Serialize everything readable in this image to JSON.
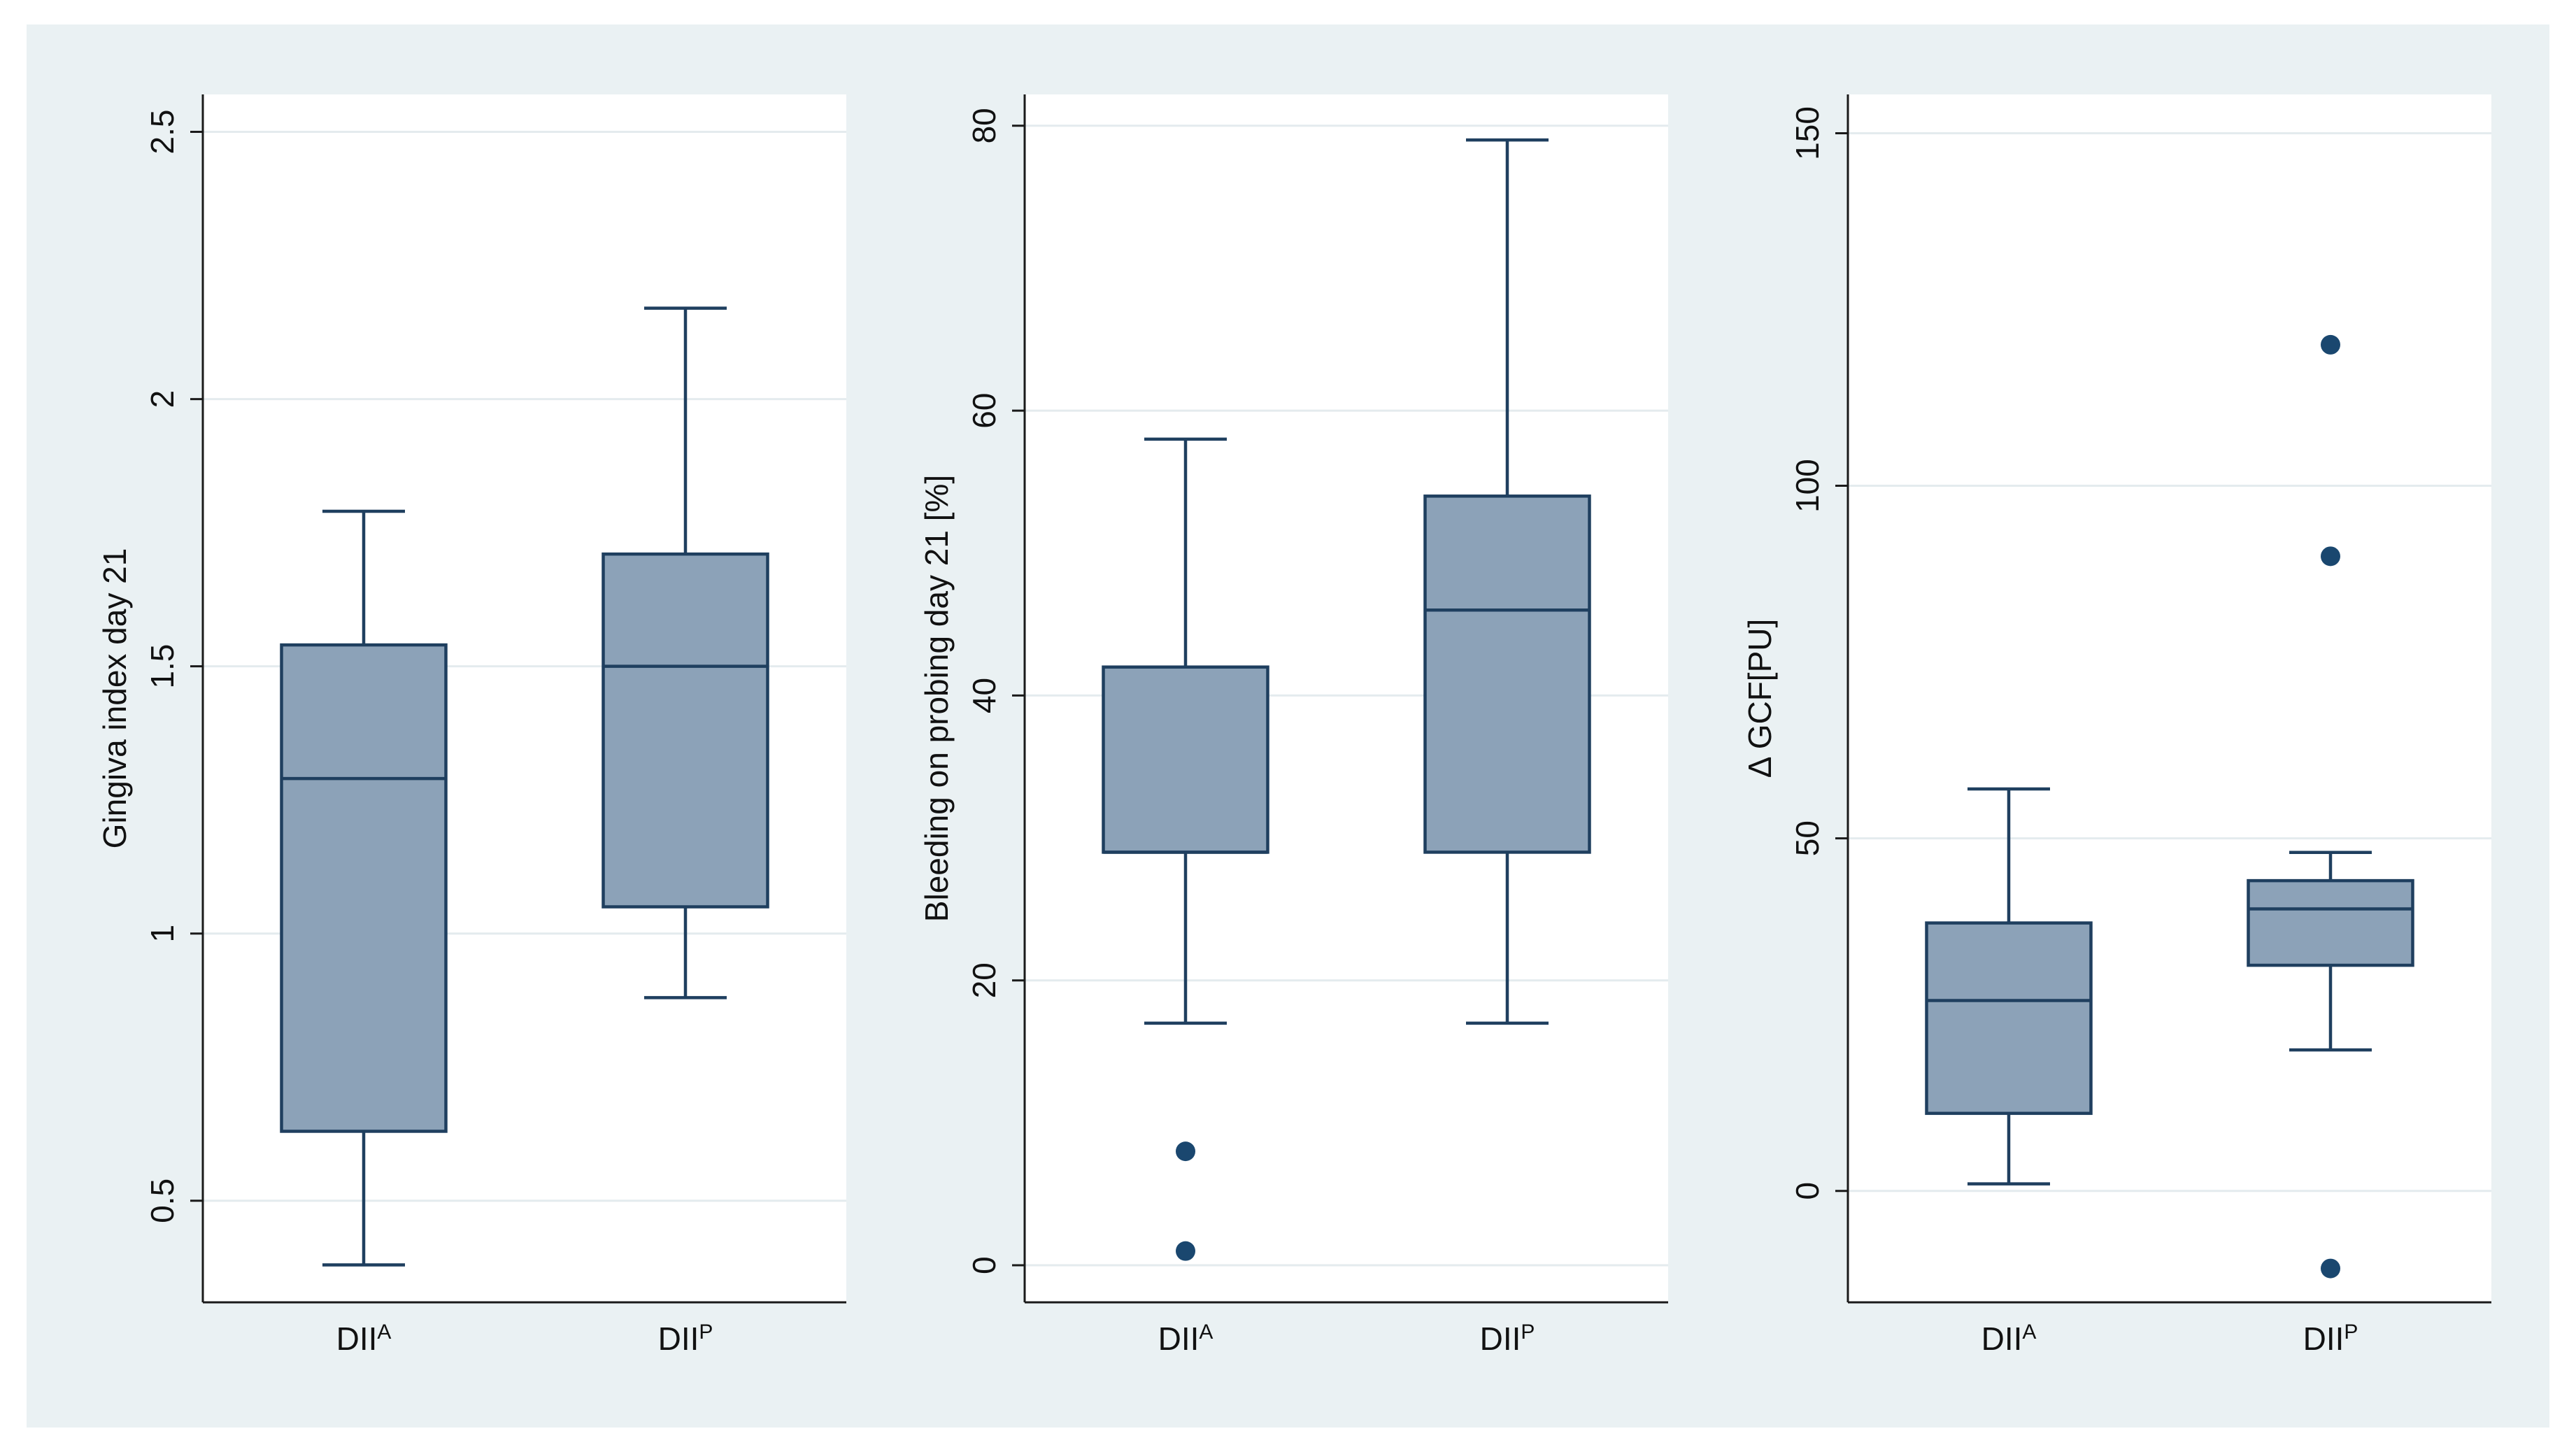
{
  "colors": {
    "figure_background": "#eaf1f3",
    "panel_background": "#ffffff",
    "box_fill": "#8ca2b8",
    "box_stroke": "#1f3f5f",
    "outlier": "#1a476f",
    "gridline": "#e4ebee",
    "axis": "#1a1a1a"
  },
  "chart_data": [
    {
      "type": "box",
      "ylabel": "Gingiva index day 21",
      "ylim": [
        0.31,
        2.57
      ],
      "yticks": [
        0.5,
        1,
        1.5,
        2,
        2.5
      ],
      "ytick_labels": [
        "0.5",
        "1",
        "1.5",
        "2",
        "2.5"
      ],
      "grid": true,
      "categories": [
        {
          "base": "DII",
          "sup": "A"
        },
        {
          "base": "DII",
          "sup": "P"
        }
      ],
      "boxes": [
        {
          "lower_whisker": 0.38,
          "q1": 0.63,
          "median": 1.29,
          "q3": 1.54,
          "upper_whisker": 1.79,
          "outliers": []
        },
        {
          "lower_whisker": 0.88,
          "q1": 1.05,
          "median": 1.5,
          "q3": 1.71,
          "upper_whisker": 2.17,
          "outliers": []
        }
      ]
    },
    {
      "type": "box",
      "ylabel": "Bleeding on probing day 21 [%]",
      "ylim": [
        -2.6,
        82.2
      ],
      "yticks": [
        0,
        20,
        40,
        60,
        80
      ],
      "ytick_labels": [
        "0",
        "20",
        "40",
        "60",
        "80"
      ],
      "grid": true,
      "categories": [
        {
          "base": "DII",
          "sup": "A"
        },
        {
          "base": "DII",
          "sup": "P"
        }
      ],
      "boxes": [
        {
          "lower_whisker": 17,
          "q1": 29,
          "median": 29,
          "q3": 42,
          "upper_whisker": 58,
          "outliers": [
            8,
            1
          ]
        },
        {
          "lower_whisker": 17,
          "q1": 29,
          "median": 46,
          "q3": 54,
          "upper_whisker": 79,
          "outliers": []
        }
      ]
    },
    {
      "type": "box",
      "ylabel": "Δ GCF[PU]",
      "ylim": [
        -15.8,
        155.5
      ],
      "yticks": [
        0,
        50,
        100,
        150
      ],
      "ytick_labels": [
        "0",
        "50",
        "100",
        "150"
      ],
      "grid": true,
      "categories": [
        {
          "base": "DII",
          "sup": "A"
        },
        {
          "base": "DII",
          "sup": "P"
        }
      ],
      "boxes": [
        {
          "lower_whisker": 1,
          "q1": 11,
          "median": 27,
          "q3": 38,
          "upper_whisker": 57,
          "outliers": []
        },
        {
          "lower_whisker": 20,
          "q1": 32,
          "median": 40,
          "q3": 44,
          "upper_whisker": 48,
          "outliers": [
            120,
            90,
            -11
          ]
        }
      ]
    }
  ]
}
